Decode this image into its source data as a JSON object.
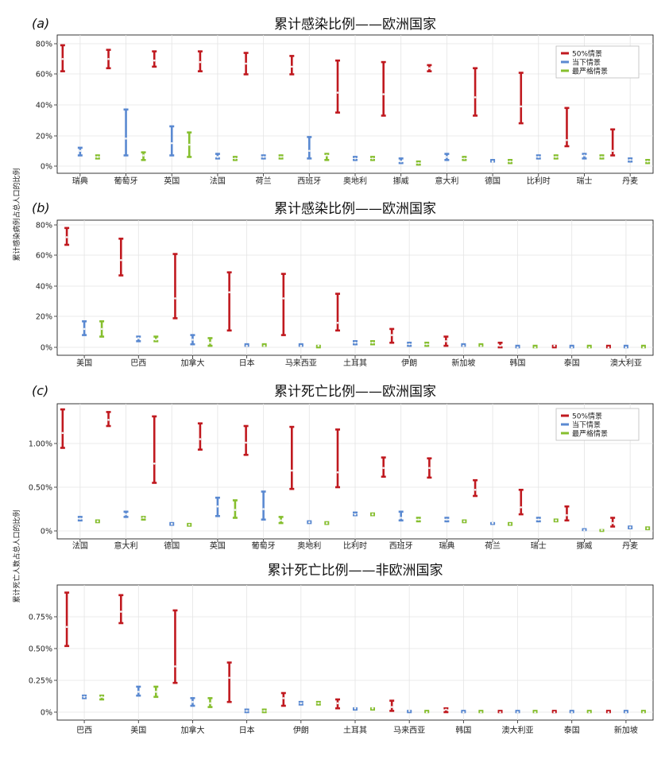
{
  "colors": {
    "s50": "#c0191f",
    "current": "#5a89d1",
    "strict": "#86bf2e",
    "grid": "#e4e4e4",
    "frame": "#222222"
  },
  "ylabels": {
    "ab": "累计感染病例占总人口的比例",
    "cd": "累计死亡人数占总人口的比例"
  },
  "chart_data": [
    {
      "type": "error-bar",
      "panel": "(a)",
      "title": "累计感染比例——欧洲国家",
      "legend": [
        "50%情景",
        "当下情景",
        "最严格情景"
      ],
      "legend_position": "top-right",
      "yticks": [
        "0%",
        "20%",
        "40%",
        "60%",
        "80%"
      ],
      "ylim": [
        0,
        82
      ],
      "categories": [
        "瑞典",
        "葡萄牙",
        "英国",
        "法国",
        "荷兰",
        "西班牙",
        "奥地利",
        "挪威",
        "意大利",
        "德国",
        "比利时",
        "瑞士",
        "丹麦"
      ],
      "series": [
        {
          "name": "50%情景",
          "low": [
            62,
            64,
            65,
            62,
            60,
            60,
            35,
            33,
            62,
            33,
            28,
            13,
            7
          ],
          "mid": [
            70,
            70,
            69,
            68,
            67,
            65,
            48,
            47,
            64,
            45,
            39,
            17,
            10
          ],
          "high": [
            79,
            76,
            75,
            75,
            74,
            72,
            69,
            68,
            66,
            64,
            61,
            38,
            24
          ]
        },
        {
          "name": "当下情景",
          "low": [
            7,
            7,
            7,
            5,
            5,
            5,
            4,
            2,
            4,
            3,
            5,
            5,
            3
          ],
          "mid": [
            10,
            18,
            15,
            6,
            6,
            10,
            5,
            3,
            6,
            3,
            6,
            7,
            4
          ],
          "high": [
            12,
            37,
            26,
            8,
            7,
            19,
            6,
            5,
            8,
            4,
            7,
            8,
            5
          ]
        },
        {
          "name": "最严格情景",
          "low": [
            5,
            4,
            6,
            4,
            5,
            4,
            4,
            1,
            4,
            2,
            5,
            5,
            2
          ],
          "mid": [
            6,
            7,
            14,
            5,
            6,
            7,
            5,
            2,
            5,
            3,
            6,
            6,
            3
          ],
          "high": [
            7,
            9,
            22,
            6,
            7,
            8,
            6,
            3,
            6,
            4,
            7,
            7,
            4
          ]
        }
      ]
    },
    {
      "type": "error-bar",
      "panel": "(b)",
      "title": "累计感染比例——欧洲国家",
      "yticks": [
        "0%",
        "20%",
        "40%",
        "60%",
        "80%"
      ],
      "ylim": [
        0,
        82
      ],
      "categories": [
        "美国",
        "巴西",
        "加拿大",
        "日本",
        "马来西亚",
        "土耳其",
        "伊朗",
        "新加坡",
        "韩国",
        "泰国",
        "澳大利亚"
      ],
      "series": [
        {
          "name": "50%情景",
          "low": [
            67,
            47,
            19,
            11,
            8,
            11,
            3,
            1,
            0,
            0,
            0
          ],
          "mid": [
            72,
            57,
            32,
            36,
            32,
            16,
            8,
            4,
            1,
            1,
            0
          ],
          "high": [
            78,
            71,
            61,
            49,
            48,
            35,
            12,
            7,
            3,
            1,
            1
          ]
        },
        {
          "name": "当下情景",
          "low": [
            8,
            4,
            2,
            1,
            1,
            2,
            1,
            1,
            0,
            0,
            0
          ],
          "mid": [
            12,
            6,
            5,
            1,
            1,
            3,
            2,
            1,
            0,
            0,
            0
          ],
          "high": [
            17,
            7,
            8,
            2,
            2,
            4,
            3,
            2,
            1,
            1,
            1
          ]
        },
        {
          "name": "最严格情景",
          "low": [
            7,
            4,
            1,
            1,
            0,
            2,
            1,
            1,
            0,
            0,
            0
          ],
          "mid": [
            12,
            5,
            3,
            1,
            1,
            3,
            2,
            1,
            0,
            0,
            0
          ],
          "high": [
            17,
            7,
            6,
            2,
            1,
            4,
            3,
            2,
            1,
            1,
            1
          ]
        }
      ]
    },
    {
      "type": "error-bar",
      "panel": "(c)",
      "title": "累计死亡比例——欧洲国家",
      "legend": [
        "50%情景",
        "当下情景",
        "最严格情景"
      ],
      "legend_position": "top-right",
      "yticks": [
        "0%",
        "0.50%",
        "1.00%"
      ],
      "ylim": [
        -0.05,
        1.4
      ],
      "categories": [
        "法国",
        "意大利",
        "德国",
        "英国",
        "葡萄牙",
        "奥地利",
        "比利时",
        "西班牙",
        "瑞典",
        "荷兰",
        "瑞士",
        "挪威",
        "丹麦"
      ],
      "series": [
        {
          "name": "50%情景",
          "low": [
            0.95,
            1.2,
            0.55,
            0.93,
            0.87,
            0.48,
            0.5,
            0.62,
            0.61,
            0.4,
            0.19,
            0.12,
            0.05
          ],
          "mid": [
            1.12,
            1.27,
            0.77,
            1.05,
            1.01,
            0.69,
            0.67,
            0.72,
            0.72,
            0.47,
            0.27,
            0.18,
            0.09
          ],
          "high": [
            1.39,
            1.36,
            1.31,
            1.23,
            1.2,
            1.19,
            1.16,
            0.84,
            0.83,
            0.58,
            0.47,
            0.28,
            0.15
          ]
        },
        {
          "name": "当下情景",
          "low": [
            0.12,
            0.16,
            0.07,
            0.17,
            0.13,
            0.09,
            0.18,
            0.12,
            0.11,
            0.08,
            0.11,
            0.01,
            0.03
          ],
          "mid": [
            0.14,
            0.19,
            0.08,
            0.28,
            0.25,
            0.1,
            0.19,
            0.15,
            0.13,
            0.09,
            0.13,
            0.01,
            0.04
          ],
          "high": [
            0.16,
            0.22,
            0.09,
            0.38,
            0.45,
            0.11,
            0.21,
            0.22,
            0.15,
            0.09,
            0.15,
            0.02,
            0.05
          ]
        },
        {
          "name": "最严格情景",
          "low": [
            0.1,
            0.13,
            0.06,
            0.15,
            0.09,
            0.08,
            0.18,
            0.11,
            0.1,
            0.07,
            0.11,
            0.0,
            0.02
          ],
          "mid": [
            0.11,
            0.15,
            0.07,
            0.24,
            0.12,
            0.09,
            0.19,
            0.13,
            0.11,
            0.08,
            0.12,
            0.01,
            0.03
          ],
          "high": [
            0.12,
            0.16,
            0.08,
            0.35,
            0.16,
            0.1,
            0.2,
            0.15,
            0.12,
            0.09,
            0.13,
            0.01,
            0.04
          ]
        }
      ]
    },
    {
      "type": "error-bar",
      "panel": "",
      "title": "累计死亡比例——非欧洲国家",
      "yticks": [
        "0%",
        "0.25%",
        "0.50%",
        "0.75%"
      ],
      "ylim": [
        -0.03,
        0.97
      ],
      "categories": [
        "巴西",
        "美国",
        "加拿大",
        "日本",
        "伊朗",
        "土耳其",
        "马来西亚",
        "韩国",
        "澳大利亚",
        "泰国",
        "新加坡"
      ],
      "series": [
        {
          "name": "50%情景",
          "low": [
            0.52,
            0.7,
            0.23,
            0.08,
            0.05,
            0.03,
            0.01,
            0.0,
            0.0,
            0.0,
            0.0
          ],
          "mid": [
            0.67,
            0.79,
            0.36,
            0.27,
            0.11,
            0.07,
            0.04,
            0.02,
            0.0,
            0.0,
            0.0
          ],
          "high": [
            0.94,
            0.92,
            0.8,
            0.39,
            0.15,
            0.1,
            0.09,
            0.03,
            0.01,
            0.01,
            0.01
          ]
        },
        {
          "name": "当下情景",
          "low": [
            0.11,
            0.13,
            0.05,
            0.0,
            0.06,
            0.02,
            0.0,
            0.0,
            0.0,
            0.0,
            0.0
          ],
          "mid": [
            0.12,
            0.16,
            0.08,
            0.01,
            0.07,
            0.03,
            0.01,
            0.0,
            0.0,
            0.0,
            0.0
          ],
          "high": [
            0.13,
            0.2,
            0.11,
            0.02,
            0.08,
            0.03,
            0.01,
            0.01,
            0.01,
            0.01,
            0.01
          ]
        },
        {
          "name": "最严格情景",
          "low": [
            0.1,
            0.12,
            0.04,
            0.0,
            0.06,
            0.02,
            0.0,
            0.0,
            0.0,
            0.0,
            0.0
          ],
          "mid": [
            0.12,
            0.16,
            0.07,
            0.01,
            0.07,
            0.03,
            0.0,
            0.0,
            0.0,
            0.0,
            0.0
          ],
          "high": [
            0.13,
            0.2,
            0.11,
            0.02,
            0.08,
            0.03,
            0.01,
            0.01,
            0.01,
            0.01,
            0.01
          ]
        }
      ]
    }
  ]
}
